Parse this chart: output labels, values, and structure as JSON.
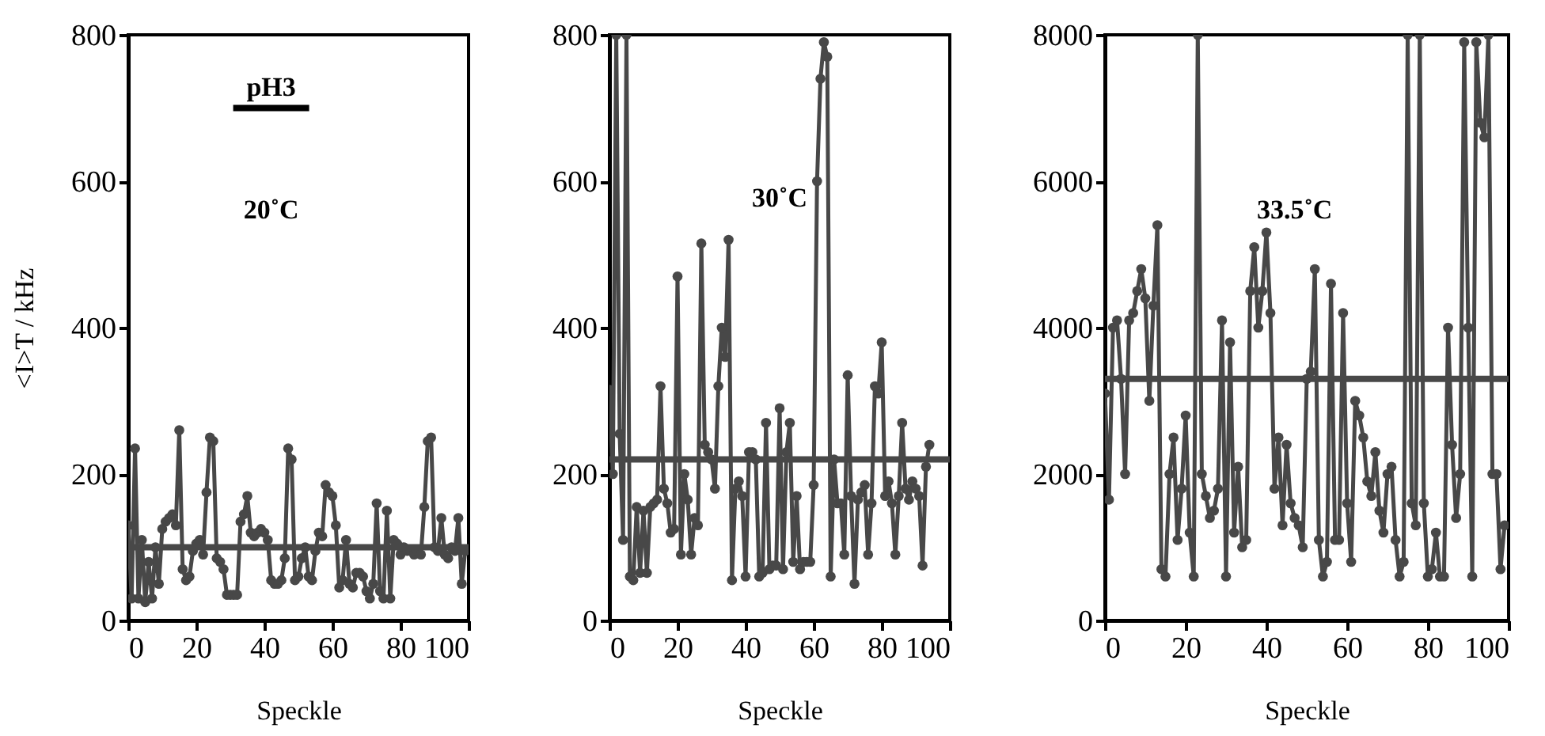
{
  "chart_data": [
    {
      "type": "line",
      "xlabel": "Speckle",
      "ylabel": "<I>T / kHz",
      "annotations": [
        "pH3",
        "20˚C"
      ],
      "xlim": [
        0,
        100
      ],
      "xticks": [
        0,
        20,
        40,
        60,
        80,
        100
      ],
      "ylim": [
        0,
        800
      ],
      "yticks": [
        0,
        200,
        400,
        600,
        800
      ],
      "grid": false,
      "marker": "circle",
      "line_style": "solid",
      "x": [
        0,
        1,
        2,
        3,
        4,
        5,
        6,
        7,
        8,
        9,
        10,
        11,
        12,
        13,
        14,
        15,
        16,
        17,
        18,
        19,
        20,
        21,
        22,
        23,
        24,
        25,
        26,
        27,
        28,
        29,
        30,
        31,
        32,
        33,
        34,
        35,
        36,
        37,
        38,
        39,
        40,
        41,
        42,
        43,
        44,
        45,
        46,
        47,
        48,
        49,
        50,
        51,
        52,
        53,
        54,
        55,
        56,
        57,
        58,
        59,
        60,
        61,
        62,
        63,
        64,
        65,
        66,
        67,
        68,
        69,
        70,
        71,
        72,
        73,
        74,
        75,
        76,
        77,
        78,
        79,
        80,
        81,
        82,
        83,
        84,
        85,
        86,
        87,
        88,
        89,
        90,
        91,
        92,
        93,
        94,
        95,
        96,
        97,
        98,
        99
      ],
      "series": [
        {
          "color": "#484848",
          "values": [
            130,
            30,
            235,
            30,
            110,
            25,
            80,
            30,
            100,
            50,
            125,
            135,
            140,
            145,
            130,
            260,
            70,
            55,
            60,
            95,
            105,
            110,
            90,
            175,
            250,
            245,
            85,
            80,
            70,
            35,
            35,
            35,
            35,
            135,
            145,
            170,
            120,
            115,
            120,
            125,
            120,
            110,
            55,
            50,
            50,
            55,
            85,
            235,
            220,
            55,
            60,
            85,
            100,
            60,
            55,
            95,
            120,
            115,
            185,
            175,
            170,
            130,
            45,
            55,
            110,
            50,
            45,
            65,
            65,
            60,
            40,
            30,
            50,
            160,
            40,
            30,
            150,
            30,
            110,
            105,
            90,
            100,
            95,
            95,
            90,
            95,
            90,
            155,
            245,
            250,
            100,
            95,
            140,
            90,
            85,
            100,
            95,
            140,
            50,
            95
          ]
        }
      ],
      "ref_lines": [
        {
          "axis": "y",
          "value": 100,
          "color": "#484848"
        }
      ]
    },
    {
      "type": "line",
      "xlabel": "Speckle",
      "annotations": [
        "30˚C"
      ],
      "xlim": [
        0,
        100
      ],
      "xticks": [
        0,
        20,
        40,
        60,
        80,
        100
      ],
      "ylim": [
        0,
        800
      ],
      "yticks": [
        0,
        200,
        400,
        600,
        800
      ],
      "grid": false,
      "marker": "circle",
      "line_style": "solid",
      "x": [
        0,
        1,
        2,
        3,
        4,
        5,
        6,
        7,
        8,
        9,
        10,
        11,
        12,
        13,
        14,
        15,
        16,
        17,
        18,
        19,
        20,
        21,
        22,
        23,
        24,
        25,
        26,
        27,
        28,
        29,
        30,
        31,
        32,
        33,
        34,
        35,
        36,
        37,
        38,
        39,
        40,
        41,
        42,
        43,
        44,
        45,
        46,
        47,
        48,
        49,
        50,
        51,
        52,
        53,
        54,
        55,
        56,
        57,
        58,
        59,
        60,
        61,
        62,
        63,
        64,
        65,
        66,
        67,
        68,
        69,
        70,
        71,
        72,
        73,
        74,
        75,
        76,
        77,
        78,
        79,
        80,
        81,
        82,
        83,
        84,
        85,
        86,
        87,
        88,
        89,
        90,
        91,
        92,
        93,
        94
      ],
      "series": [
        {
          "color": "#484848",
          "values": [
            315,
            200,
            800,
            255,
            110,
            800,
            60,
            55,
            155,
            65,
            150,
            65,
            155,
            160,
            165,
            320,
            180,
            160,
            120,
            125,
            470,
            90,
            200,
            165,
            90,
            140,
            130,
            515,
            240,
            230,
            220,
            180,
            320,
            400,
            360,
            520,
            55,
            180,
            190,
            170,
            60,
            230,
            230,
            220,
            60,
            65,
            270,
            70,
            75,
            75,
            290,
            70,
            230,
            270,
            80,
            170,
            70,
            80,
            80,
            80,
            185,
            600,
            740,
            790,
            770,
            60,
            220,
            160,
            160,
            90,
            335,
            170,
            50,
            165,
            175,
            185,
            90,
            160,
            320,
            310,
            380,
            170,
            190,
            160,
            90,
            170,
            270,
            180,
            165,
            190,
            180,
            170,
            75,
            210,
            240
          ]
        }
      ],
      "ref_lines": [
        {
          "axis": "y",
          "value": 220,
          "color": "#484848"
        }
      ]
    },
    {
      "type": "line",
      "xlabel": "Speckle",
      "annotations": [
        "33.5˚C"
      ],
      "xlim": [
        0,
        100
      ],
      "xticks": [
        0,
        20,
        40,
        60,
        80,
        100
      ],
      "ylim": [
        0,
        8000
      ],
      "yticks": [
        0,
        2000,
        4000,
        6000,
        8000
      ],
      "grid": false,
      "marker": "circle",
      "line_style": "solid",
      "x": [
        0,
        1,
        2,
        3,
        4,
        5,
        6,
        7,
        8,
        9,
        10,
        11,
        12,
        13,
        14,
        15,
        16,
        17,
        18,
        19,
        20,
        21,
        22,
        23,
        24,
        25,
        26,
        27,
        28,
        29,
        30,
        31,
        32,
        33,
        34,
        35,
        36,
        37,
        38,
        39,
        40,
        41,
        42,
        43,
        44,
        45,
        46,
        47,
        48,
        49,
        50,
        51,
        52,
        53,
        54,
        55,
        56,
        57,
        58,
        59,
        60,
        61,
        62,
        63,
        64,
        65,
        66,
        67,
        68,
        69,
        70,
        71,
        72,
        73,
        74,
        75,
        76,
        77,
        78,
        79,
        80,
        81,
        82,
        83,
        84,
        85,
        86,
        87,
        88,
        89,
        90,
        91,
        92,
        93,
        94,
        95,
        96,
        97,
        98,
        99
      ],
      "series": [
        {
          "color": "#484848",
          "values": [
            3100,
            1650,
            4000,
            4100,
            3300,
            2000,
            4100,
            4200,
            4500,
            4800,
            4400,
            3000,
            4300,
            5400,
            700,
            600,
            2000,
            2500,
            1100,
            1800,
            2800,
            1200,
            600,
            8000,
            2000,
            1700,
            1400,
            1500,
            1800,
            4100,
            600,
            3800,
            1200,
            2100,
            1000,
            1100,
            4500,
            5100,
            4000,
            4500,
            5300,
            4200,
            1800,
            2500,
            1300,
            2400,
            1600,
            1400,
            1300,
            1000,
            3300,
            3400,
            4800,
            1100,
            600,
            800,
            4600,
            1100,
            1100,
            4200,
            1600,
            800,
            3000,
            2800,
            2500,
            1900,
            1700,
            2300,
            1500,
            1200,
            2000,
            2100,
            1100,
            600,
            800,
            8000,
            1600,
            1300,
            8000,
            1600,
            600,
            700,
            1200,
            600,
            600,
            4000,
            2400,
            1400,
            2000,
            7900,
            4000,
            600,
            7900,
            6800,
            6600,
            8000,
            2000,
            2000,
            700,
            1300
          ]
        }
      ],
      "ref_lines": [
        {
          "axis": "y",
          "value": 3300,
          "color": "#484848"
        }
      ]
    }
  ]
}
